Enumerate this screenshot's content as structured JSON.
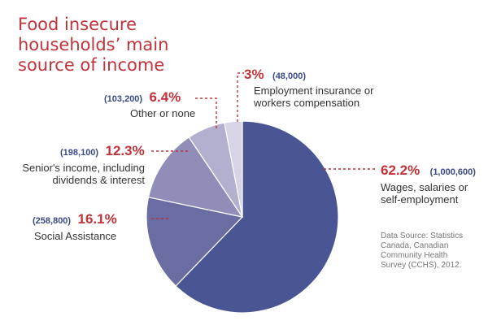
{
  "title_lines": [
    "Food insecure",
    "households’ main",
    "source of income"
  ],
  "source_lines": [
    "Data Source: Statistics",
    "Canada, Canadian",
    "Community Health",
    "Survey (CCHS), 2012."
  ],
  "colors": {
    "title": "#c0333b",
    "percent": "#c0333b",
    "count": "#3a4a86",
    "leader": "#c0333b",
    "slices": [
      "#4a5594",
      "#6a6da2",
      "#908db8",
      "#b3b0cf",
      "#d6d4e6"
    ]
  },
  "chart_data": {
    "type": "pie",
    "title": "Food insecure households’ main source of income",
    "slices": [
      {
        "percent": "62.2%",
        "count": "(1,000,600)",
        "label_lines": [
          "Wages, salaries or",
          "self-employment"
        ],
        "value": 62.2
      },
      {
        "percent": "16.1%",
        "count": "(258,800)",
        "label_lines": [
          "Social Assistance"
        ],
        "value": 16.1
      },
      {
        "percent": "12.3%",
        "count": "(198,100)",
        "label_lines": [
          "Senior's income, including",
          "dividends & interest"
        ],
        "value": 12.3
      },
      {
        "percent": "6.4%",
        "count": "(103,200)",
        "label_lines": [
          "Other or none"
        ],
        "value": 6.4
      },
      {
        "percent": "3%",
        "count": "(48,000)",
        "label_lines": [
          "Employment insurance or",
          "workers compensation"
        ],
        "value": 3.0
      }
    ]
  }
}
